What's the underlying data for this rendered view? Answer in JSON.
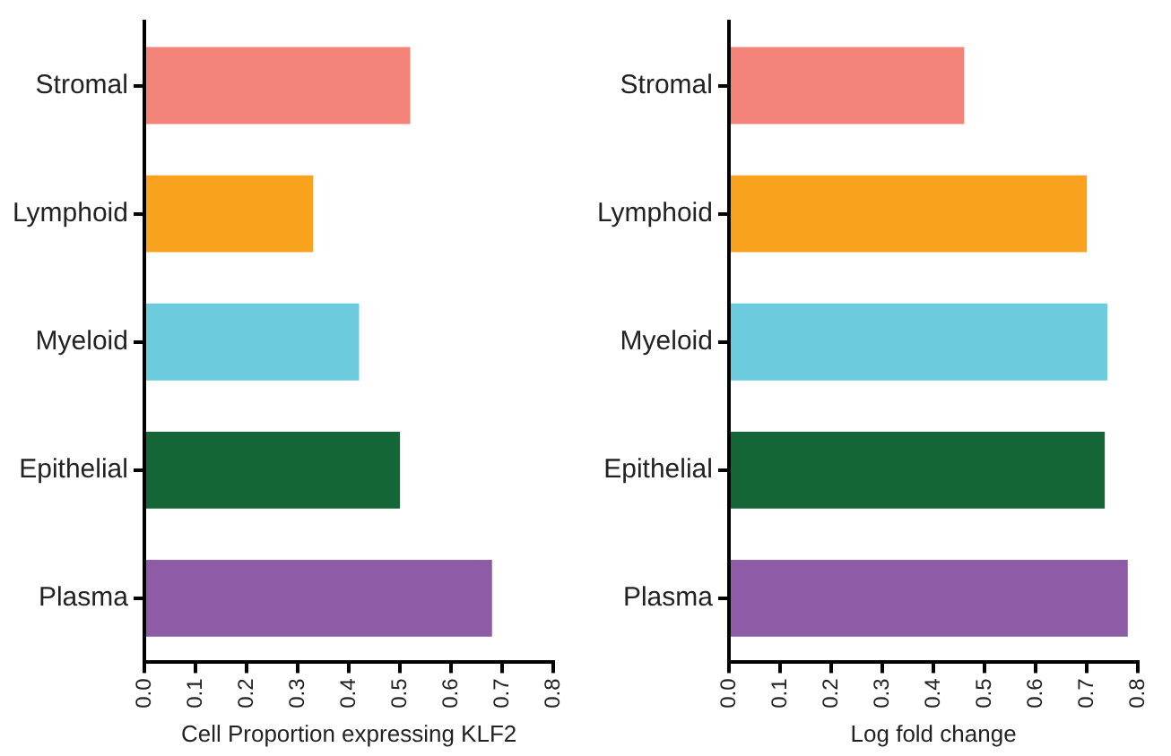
{
  "chart_data": [
    {
      "type": "bar",
      "orientation": "horizontal",
      "xlabel": "Cell Proportion expressing KLF2",
      "categories": [
        "Stromal",
        "Lymphoid",
        "Myeloid",
        "Epithelial",
        "Plasma"
      ],
      "values": [
        0.52,
        0.33,
        0.42,
        0.5,
        0.68
      ],
      "colors": [
        "#f4837a",
        "#f9a21e",
        "#6ccbdc",
        "#156637",
        "#8e5ba6"
      ],
      "xlim": [
        0,
        0.8
      ],
      "xticks": [
        {
          "value": 0,
          "label": "0.0"
        },
        0.1,
        0.2,
        0.3,
        0.4,
        0.5,
        0.6,
        0.7,
        0.8
      ],
      "grid": false,
      "legend": false
    },
    {
      "type": "bar",
      "orientation": "horizontal",
      "xlabel": "Log fold change",
      "categories": [
        "Stromal",
        "Lymphoid",
        "Myeloid",
        "Epithelial",
        "Plasma"
      ],
      "values": [
        0.46,
        0.7,
        0.74,
        0.735,
        0.78
      ],
      "colors": [
        "#f4837a",
        "#f9a21e",
        "#6ccbdc",
        "#156637",
        "#8e5ba6"
      ],
      "xlim": [
        0,
        0.8
      ],
      "xticks": [
        {
          "value": 0,
          "label": "0.0"
        },
        0.1,
        0.2,
        0.3,
        0.4,
        0.5,
        0.6,
        0.7,
        0.8
      ],
      "grid": false,
      "legend": false
    }
  ]
}
